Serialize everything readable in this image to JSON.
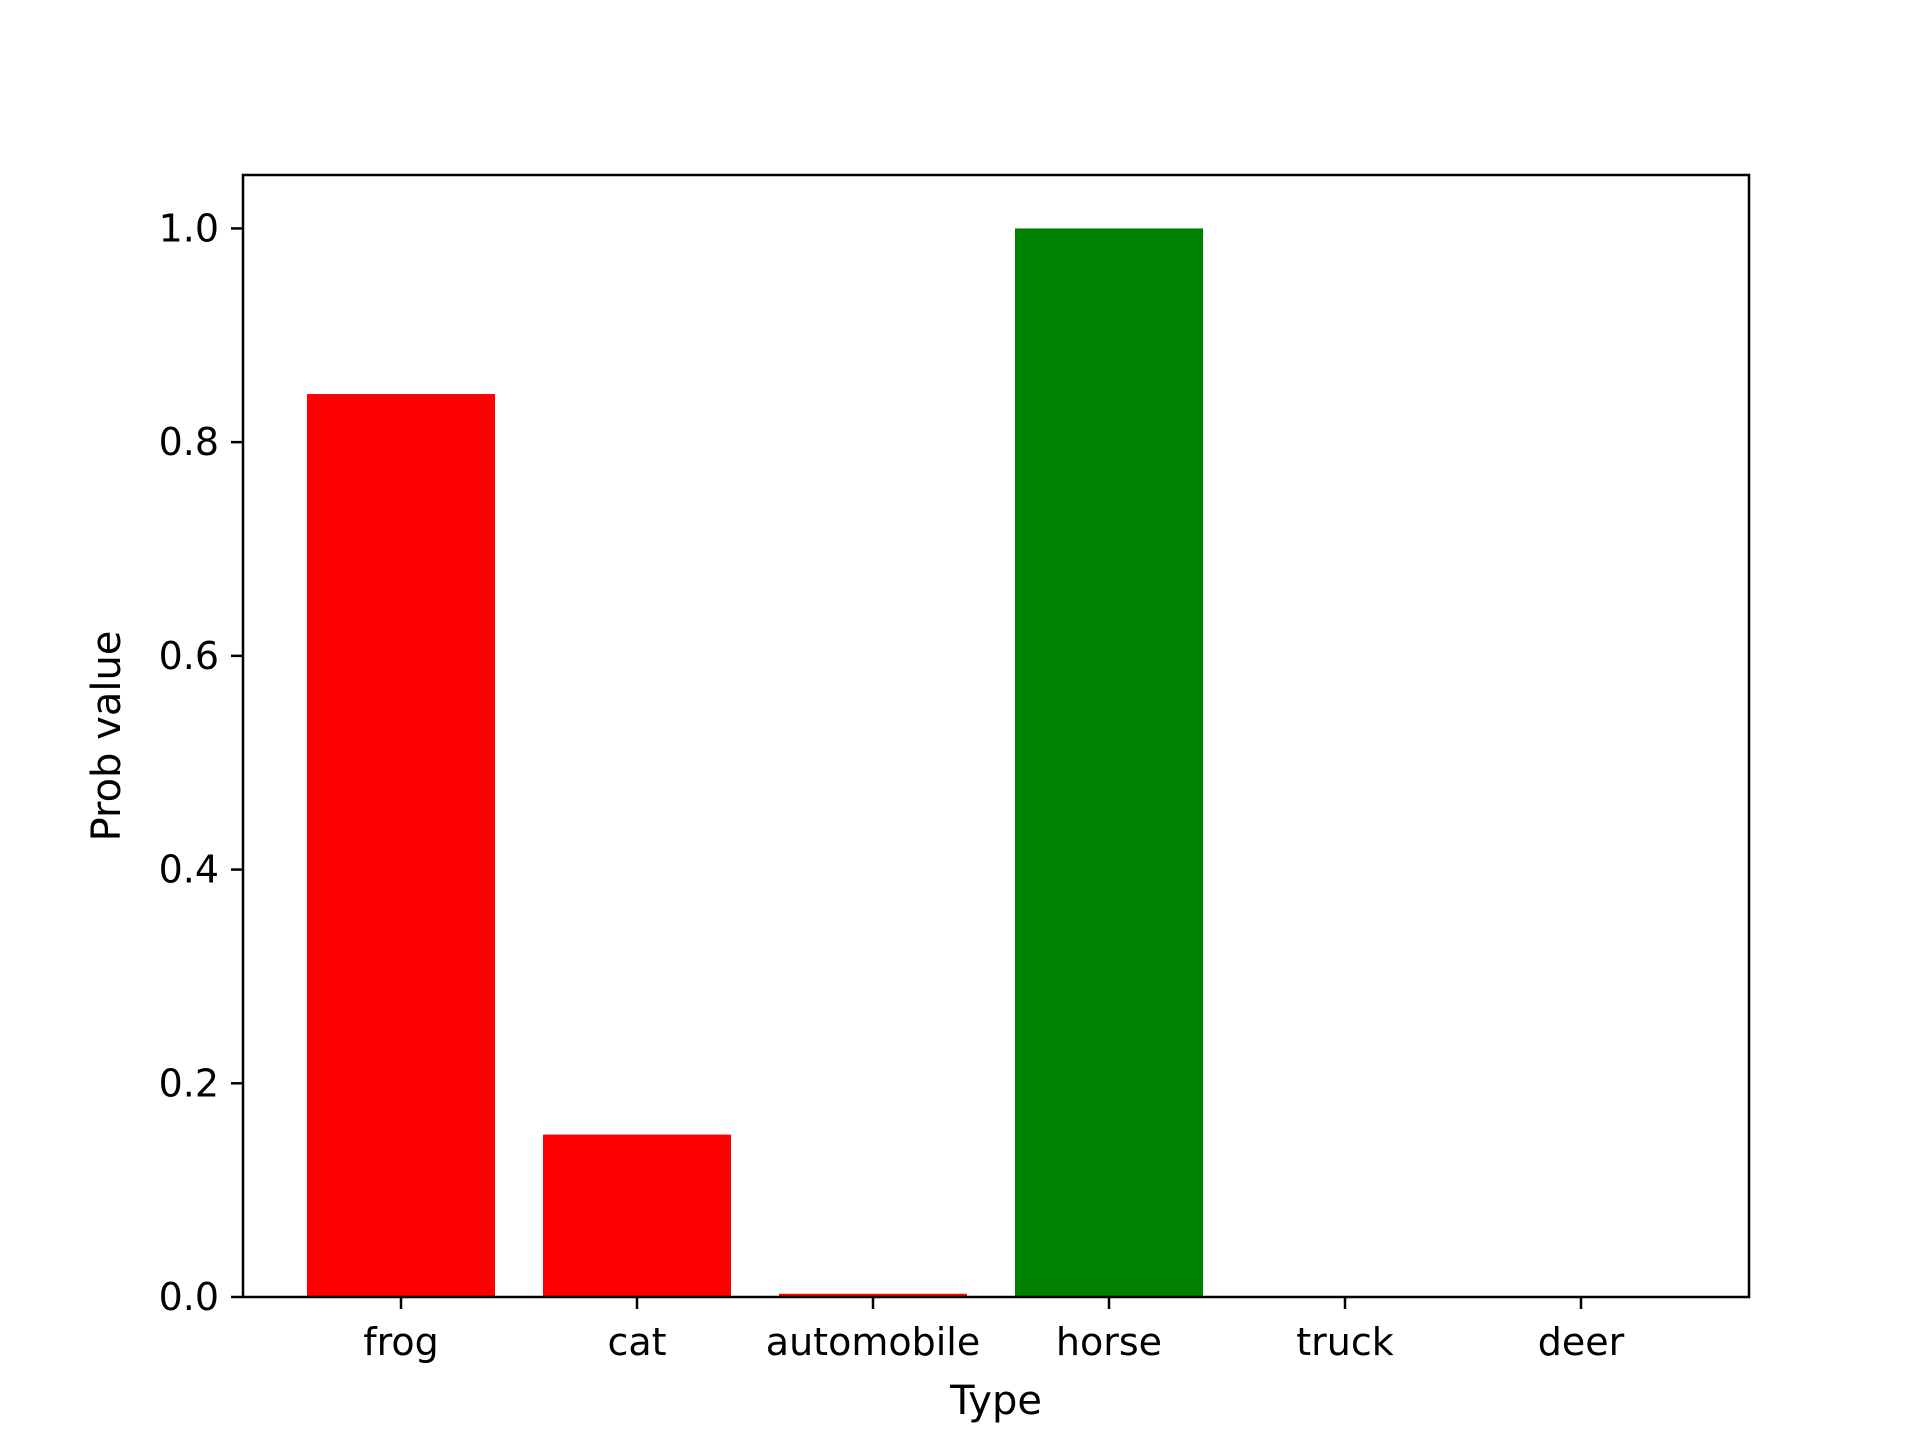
{
  "chart_data": {
    "type": "bar",
    "categories": [
      "frog",
      "cat",
      "automobile",
      "horse",
      "truck",
      "deer"
    ],
    "values": [
      0.845,
      0.152,
      0.003,
      1.0,
      0.0,
      0.0
    ],
    "bar_colors": [
      "#ff0000",
      "#ff0000",
      "#ff0000",
      "#008000",
      "#ff0000",
      "#ff0000"
    ],
    "xlabel": "Type",
    "ylabel": "Prob value",
    "ylim": [
      0,
      1.05
    ],
    "yticks": [
      "0.0",
      "0.2",
      "0.4",
      "0.6",
      "0.8",
      "1.0"
    ],
    "grid": false
  }
}
